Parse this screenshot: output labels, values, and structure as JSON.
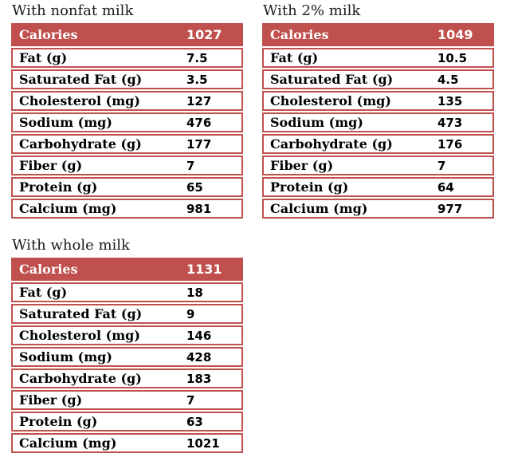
{
  "colors": {
    "accent": "#C0504D",
    "header_text": "#FFFFFF",
    "body_text": "#000000",
    "title_text": "#1A1A1A",
    "row_background": "#FFFFFF",
    "page_background": "#FFFFFF"
  },
  "tables": [
    {
      "id": "nonfat",
      "title": "With nonfat milk",
      "header": {
        "label": "Calories",
        "value": "1027"
      },
      "rows": [
        {
          "label": "Fat (g)",
          "value": "7.5"
        },
        {
          "label": "Saturated Fat (g)",
          "value": "3.5"
        },
        {
          "label": "Cholesterol (mg)",
          "value": "127"
        },
        {
          "label": "Sodium (mg)",
          "value": "476"
        },
        {
          "label": "Carbohydrate (g)",
          "value": "177"
        },
        {
          "label": "Fiber (g)",
          "value": "7"
        },
        {
          "label": "Protein (g)",
          "value": "65"
        },
        {
          "label": "Calcium (mg)",
          "value": "981"
        }
      ]
    },
    {
      "id": "two-percent",
      "title": "With 2% milk",
      "header": {
        "label": "Calories",
        "value": "1049"
      },
      "rows": [
        {
          "label": "Fat (g)",
          "value": "10.5"
        },
        {
          "label": "Saturated Fat (g)",
          "value": "4.5"
        },
        {
          "label": "Cholesterol (mg)",
          "value": "135"
        },
        {
          "label": "Sodium (mg)",
          "value": "473"
        },
        {
          "label": "Carbohydrate (g)",
          "value": "176"
        },
        {
          "label": "Fiber (g)",
          "value": "7"
        },
        {
          "label": "Protein (g)",
          "value": "64"
        },
        {
          "label": "Calcium (mg)",
          "value": "977"
        }
      ]
    },
    {
      "id": "whole",
      "title": "With whole milk",
      "header": {
        "label": "Calories",
        "value": "1131"
      },
      "rows": [
        {
          "label": "Fat (g)",
          "value": "18"
        },
        {
          "label": "Saturated Fat (g)",
          "value": "9"
        },
        {
          "label": "Cholesterol (mg)",
          "value": "146"
        },
        {
          "label": "Sodium (mg)",
          "value": "428"
        },
        {
          "label": "Carbohydrate (g)",
          "value": "183"
        },
        {
          "label": "Fiber (g)",
          "value": "7"
        },
        {
          "label": "Protein (g)",
          "value": "63"
        },
        {
          "label": "Calcium (mg)",
          "value": "1021"
        }
      ]
    }
  ]
}
